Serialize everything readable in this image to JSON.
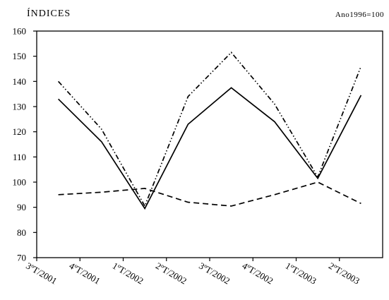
{
  "chart_data": {
    "type": "line",
    "title": "ÍNDICES",
    "subtitle": "Ano1996=100",
    "xlabel": "",
    "ylabel": "",
    "ylim": [
      70,
      160
    ],
    "yticks": [
      70,
      80,
      90,
      100,
      110,
      120,
      130,
      140,
      150,
      160
    ],
    "grid": false,
    "legend": "none",
    "categories": [
      "3ºT/2001",
      "4ºT/2001",
      "1ºT/2002",
      "2ºT/2002",
      "3ºT/2002",
      "4ºT/2002",
      "1ºT/2003",
      "2ºT/2003"
    ],
    "series": [
      {
        "style": "solid",
        "values": [
          133,
          116,
          89.5,
          123,
          137.5,
          124,
          101.5,
          134.5
        ]
      },
      {
        "style": "dashed",
        "values": [
          95,
          96,
          97.5,
          92,
          90.5,
          95,
          100,
          91.5
        ]
      },
      {
        "style": "dashdotdot",
        "values": [
          140,
          121,
          90.5,
          134,
          151.5,
          131,
          102,
          146
        ]
      }
    ]
  }
}
